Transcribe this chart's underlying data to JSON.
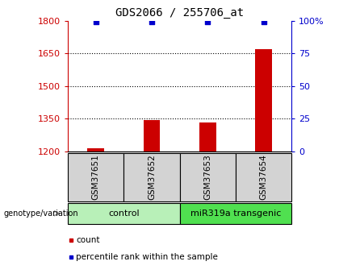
{
  "title": "GDS2066 / 255706_at",
  "samples": [
    "GSM37651",
    "GSM37652",
    "GSM37653",
    "GSM37654"
  ],
  "counts": [
    1215,
    1345,
    1335,
    1670
  ],
  "percentile_ranks": [
    99,
    99,
    99,
    99.5
  ],
  "ylim_left": [
    1200,
    1800
  ],
  "ylim_right": [
    0,
    100
  ],
  "yticks_left": [
    1200,
    1350,
    1500,
    1650,
    1800
  ],
  "yticks_right": [
    0,
    25,
    50,
    75,
    100
  ],
  "ytick_labels_left": [
    "1200",
    "1350",
    "1500",
    "1650",
    "1800"
  ],
  "ytick_labels_right": [
    "0",
    "25",
    "50",
    "75",
    "100%"
  ],
  "groups": [
    {
      "label": "control",
      "color": "#b8f0b8"
    },
    {
      "label": "miR319a transgenic",
      "color": "#50e050"
    }
  ],
  "bar_color": "#cc0000",
  "scatter_color": "#0000cc",
  "left_tick_color": "#cc0000",
  "right_tick_color": "#0000cc",
  "title_fontsize": 10,
  "axis_label_fontsize": 8,
  "sample_label_fontsize": 7.5,
  "group_label_fontsize": 8,
  "legend_fontsize": 7.5,
  "bar_width": 0.3,
  "genotype_label": "genotype/variation",
  "legend_items": [
    {
      "label": "count",
      "color": "#cc0000"
    },
    {
      "label": "percentile rank within the sample",
      "color": "#0000cc"
    }
  ]
}
